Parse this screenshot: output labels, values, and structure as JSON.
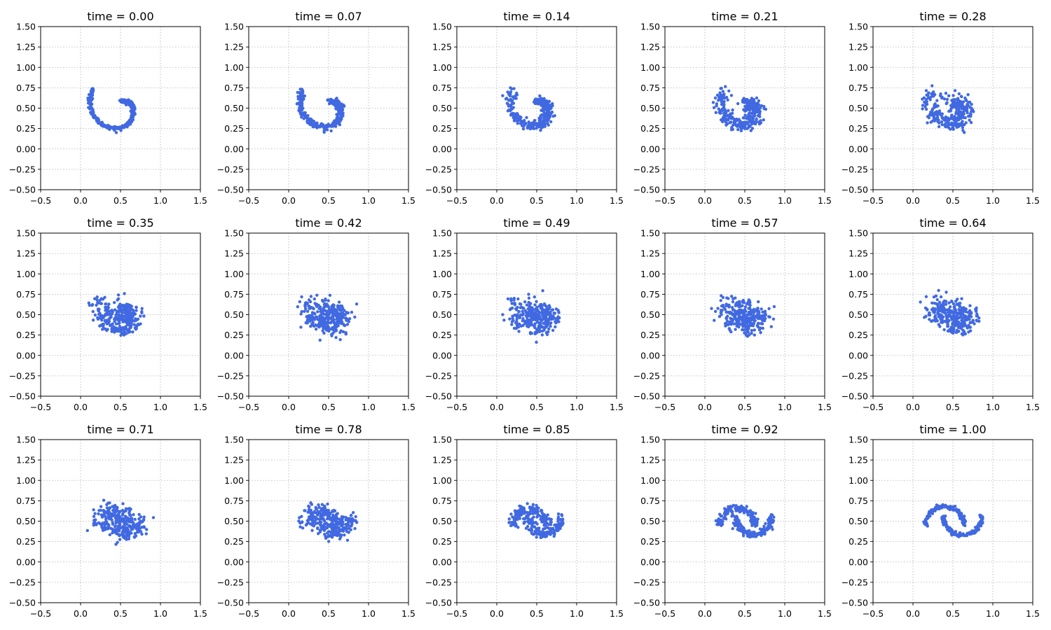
{
  "figure": {
    "background": "#ffffff",
    "point_color": "#4169e1",
    "grid_color": "#b0b0b0"
  },
  "chart_data": {
    "type": "scatter",
    "layout": "3x5 grid of subplots",
    "xlim": [
      -0.5,
      1.5
    ],
    "ylim": [
      -0.5,
      1.5
    ],
    "xticks": [
      -0.5,
      0.0,
      0.5,
      1.0,
      1.5
    ],
    "yticks": [
      -0.5,
      -0.25,
      0.0,
      0.25,
      0.5,
      0.75,
      1.0,
      1.25,
      1.5
    ],
    "xtick_labels": [
      "−0.5",
      "0.0",
      "0.5",
      "1.0",
      "1.5"
    ],
    "ytick_labels": [
      "−0.50",
      "−0.25",
      "0.00",
      "0.25",
      "0.50",
      "0.75",
      "1.00",
      "1.25",
      "1.50"
    ],
    "grid": true,
    "grid_style": "dotted",
    "marker_color": "#4169e1",
    "description_of_transition": "Points move from a spiral (time 0.00) to a two-moons-like curve (time 1.00); intermediate frames interpolate.",
    "panels": [
      {
        "title": "time = 0.00",
        "time": 0.0
      },
      {
        "title": "time = 0.07",
        "time": 0.07
      },
      {
        "title": "time = 0.14",
        "time": 0.14
      },
      {
        "title": "time = 0.21",
        "time": 0.21
      },
      {
        "title": "time = 0.28",
        "time": 0.28
      },
      {
        "title": "time = 0.35",
        "time": 0.35
      },
      {
        "title": "time = 0.42",
        "time": 0.42
      },
      {
        "title": "time = 0.49",
        "time": 0.49
      },
      {
        "title": "time = 0.57",
        "time": 0.57
      },
      {
        "title": "time = 0.64",
        "time": 0.64
      },
      {
        "title": "time = 0.71",
        "time": 0.71
      },
      {
        "title": "time = 0.78",
        "time": 0.78
      },
      {
        "title": "time = 0.85",
        "time": 0.85
      },
      {
        "title": "time = 0.92",
        "time": 0.92
      },
      {
        "title": "time = 1.00",
        "time": 1.0
      }
    ]
  }
}
